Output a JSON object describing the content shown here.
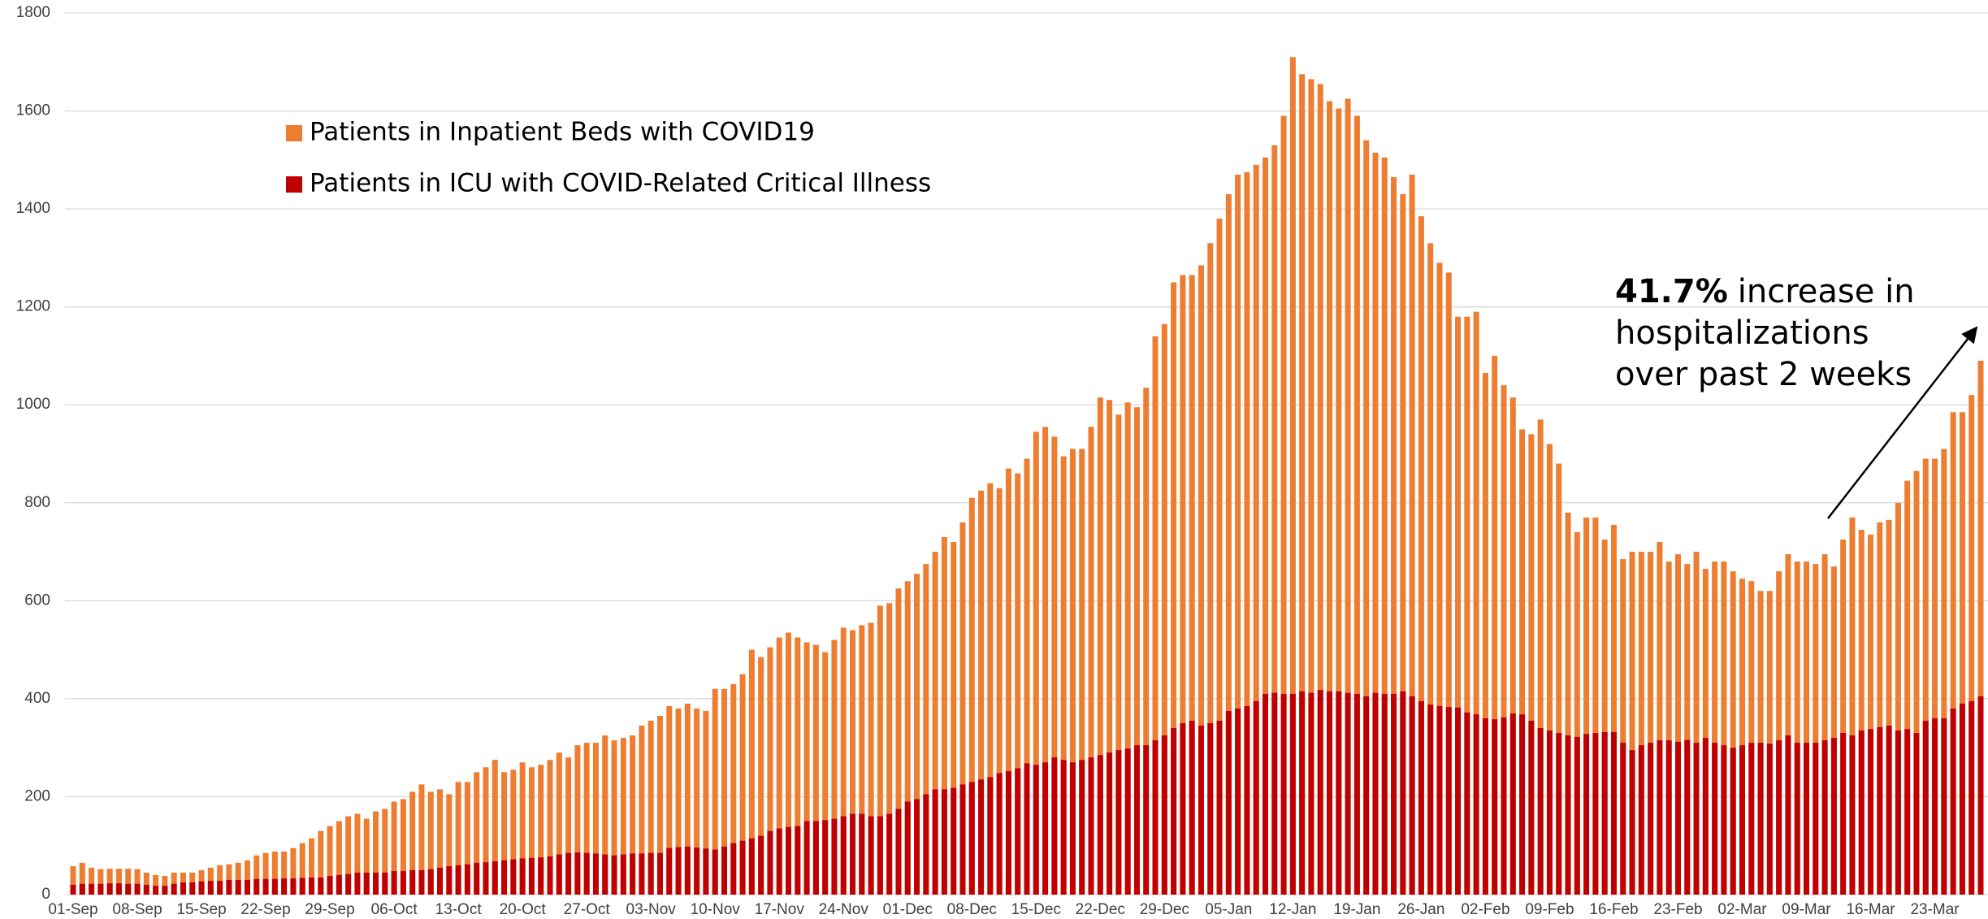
{
  "chart_data": {
    "type": "bar",
    "overlap": true,
    "categories": [
      "01-Sep",
      null,
      null,
      null,
      null,
      null,
      null,
      "08-Sep",
      null,
      null,
      null,
      null,
      null,
      null,
      "15-Sep",
      null,
      null,
      null,
      null,
      null,
      null,
      "22-Sep",
      null,
      null,
      null,
      null,
      null,
      null,
      "29-Sep",
      null,
      null,
      null,
      null,
      null,
      null,
      "06-Oct",
      null,
      null,
      null,
      null,
      null,
      null,
      "13-Oct",
      null,
      null,
      null,
      null,
      null,
      null,
      "20-Oct",
      null,
      null,
      null,
      null,
      null,
      null,
      "27-Oct",
      null,
      null,
      null,
      null,
      null,
      null,
      "03-Nov",
      null,
      null,
      null,
      null,
      null,
      null,
      "10-Nov",
      null,
      null,
      null,
      null,
      null,
      null,
      "17-Nov",
      null,
      null,
      null,
      null,
      null,
      null,
      "24-Nov",
      null,
      null,
      null,
      null,
      null,
      null,
      "01-Dec",
      null,
      null,
      null,
      null,
      null,
      null,
      "08-Dec",
      null,
      null,
      null,
      null,
      null,
      null,
      "15-Dec",
      null,
      null,
      null,
      null,
      null,
      null,
      "22-Dec",
      null,
      null,
      null,
      null,
      null,
      null,
      "29-Dec",
      null,
      null,
      null,
      null,
      null,
      null,
      "05-Jan",
      null,
      null,
      null,
      null,
      null,
      null,
      "12-Jan",
      null,
      null,
      null,
      null,
      null,
      null,
      "19-Jan",
      null,
      null,
      null,
      null,
      null,
      null,
      "26-Jan",
      null,
      null,
      null,
      null,
      null,
      null,
      "02-Feb",
      null,
      null,
      null,
      null,
      null,
      null,
      "09-Feb",
      null,
      null,
      null,
      null,
      null,
      null,
      "16-Feb",
      null,
      null,
      null,
      null,
      null,
      null,
      "23-Feb",
      null,
      null,
      null,
      null,
      null,
      null,
      "02-Mar",
      null,
      null,
      null,
      null,
      null,
      null,
      "09-Mar",
      null,
      null,
      null,
      null,
      null,
      null,
      "16-Mar",
      null,
      null,
      null,
      null,
      null,
      null,
      "23-Mar",
      null,
      null,
      null,
      null,
      null
    ],
    "series": [
      {
        "name": "Patients in Inpatient Beds with COVID19",
        "color": "#ed7d31",
        "values": [
          58,
          65,
          55,
          52,
          53,
          53,
          53,
          52,
          45,
          40,
          38,
          45,
          45,
          45,
          50,
          55,
          60,
          62,
          65,
          70,
          80,
          85,
          88,
          88,
          95,
          105,
          115,
          130,
          140,
          150,
          160,
          165,
          155,
          170,
          175,
          190,
          195,
          210,
          225,
          210,
          215,
          205,
          230,
          230,
          250,
          260,
          275,
          250,
          255,
          270,
          260,
          265,
          275,
          290,
          280,
          305,
          310,
          310,
          325,
          315,
          320,
          325,
          345,
          355,
          365,
          385,
          380,
          390,
          380,
          375,
          420,
          420,
          430,
          450,
          500,
          485,
          505,
          525,
          535,
          525,
          515,
          510,
          495,
          520,
          545,
          540,
          550,
          555,
          590,
          595,
          625,
          640,
          655,
          675,
          700,
          730,
          720,
          760,
          810,
          825,
          840,
          830,
          870,
          860,
          890,
          945,
          955,
          935,
          895,
          910,
          910,
          955,
          1015,
          1010,
          980,
          1005,
          995,
          1035,
          1140,
          1165,
          1250,
          1265,
          1265,
          1285,
          1330,
          1380,
          1430,
          1470,
          1475,
          1490,
          1505,
          1530,
          1590,
          1710,
          1675,
          1665,
          1655,
          1620,
          1605,
          1625,
          1590,
          1540,
          1515,
          1505,
          1465,
          1430,
          1470,
          1385,
          1330,
          1290,
          1270,
          1180,
          1180,
          1190,
          1065,
          1100,
          1040,
          1015,
          950,
          940,
          970,
          920,
          880,
          780,
          740,
          770,
          770,
          725,
          755,
          685,
          700,
          700,
          700,
          720,
          680,
          695,
          675,
          700,
          665,
          680,
          680,
          660,
          645,
          640,
          620,
          620,
          660,
          695,
          680,
          680,
          675,
          695,
          670,
          725,
          770,
          745,
          735,
          760,
          765,
          800,
          845,
          865,
          890,
          890,
          910,
          985,
          985,
          1020,
          1090
        ]
      },
      {
        "name": "Patients in ICU with COVID-Related Critical Illness",
        "color": "#c00000",
        "values": [
          20,
          22,
          22,
          22,
          23,
          23,
          22,
          22,
          20,
          18,
          18,
          22,
          25,
          25,
          27,
          28,
          28,
          30,
          30,
          30,
          32,
          32,
          32,
          33,
          33,
          34,
          35,
          35,
          38,
          40,
          42,
          45,
          45,
          45,
          45,
          48,
          48,
          50,
          50,
          52,
          55,
          58,
          60,
          62,
          65,
          66,
          68,
          70,
          72,
          74,
          75,
          76,
          78,
          82,
          85,
          86,
          85,
          84,
          82,
          80,
          82,
          84,
          84,
          85,
          85,
          95,
          97,
          98,
          96,
          94,
          92,
          98,
          105,
          110,
          115,
          120,
          130,
          135,
          138,
          140,
          150,
          150,
          152,
          155,
          160,
          165,
          165,
          160,
          160,
          165,
          175,
          190,
          195,
          205,
          215,
          215,
          218,
          225,
          230,
          235,
          240,
          248,
          252,
          258,
          268,
          265,
          270,
          280,
          275,
          270,
          275,
          280,
          285,
          290,
          295,
          298,
          305,
          305,
          315,
          325,
          340,
          350,
          355,
          345,
          350,
          355,
          375,
          380,
          385,
          395,
          410,
          412,
          410,
          410,
          415,
          412,
          418,
          415,
          415,
          412,
          410,
          405,
          412,
          410,
          410,
          415,
          405,
          395,
          388,
          385,
          383,
          382,
          372,
          368,
          360,
          358,
          362,
          370,
          368,
          355,
          340,
          335,
          330,
          325,
          322,
          328,
          330,
          332,
          332,
          310,
          295,
          305,
          310,
          315,
          315,
          312,
          316,
          310,
          320,
          310,
          305,
          300,
          305,
          310,
          310,
          308,
          315,
          325,
          310,
          310,
          310,
          315,
          320,
          330,
          325,
          335,
          338,
          342,
          345,
          335,
          338,
          330,
          355,
          360,
          360,
          380,
          390,
          395,
          405
        ]
      }
    ],
    "ylim": [
      0,
      1800
    ],
    "yticks": [
      0,
      200,
      400,
      600,
      800,
      1000,
      1200,
      1400,
      1600,
      1800
    ],
    "grid": true,
    "annotation": {
      "highlight": "41.7%",
      "lines": [
        "increase in",
        "hospitalizations",
        "over past 2 weeks"
      ]
    }
  }
}
